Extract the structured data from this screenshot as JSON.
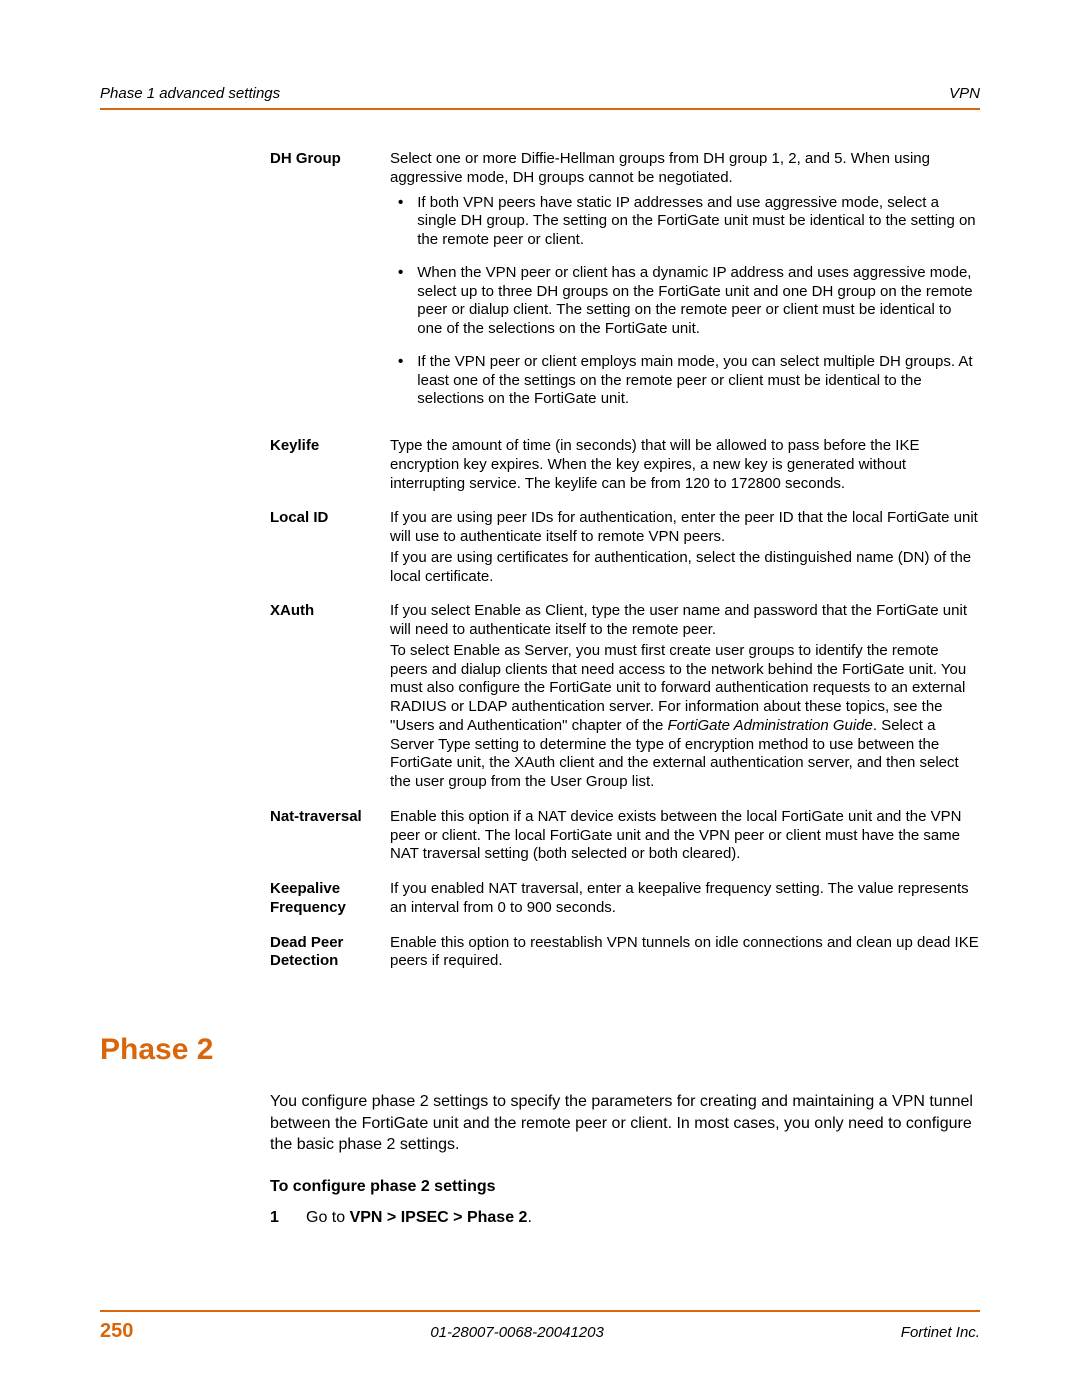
{
  "header": {
    "left": "Phase 1 advanced settings",
    "right": "VPN"
  },
  "defs": {
    "dhgroup": {
      "label": "DH Group",
      "intro": "Select one or more Diffie-Hellman groups from DH group 1, 2, and 5. When using aggressive mode, DH groups cannot be negotiated.",
      "b1": "If both VPN peers have static IP addresses and use aggressive mode, select a single DH group. The setting on the FortiGate unit must be identical to the setting on the remote peer or client.",
      "b2": "When the VPN peer or client has a dynamic IP address and uses aggressive mode, select up to three DH groups on the FortiGate unit and one DH group on the remote peer or dialup client. The setting on the remote peer or client must be identical to one of the selections on the FortiGate unit.",
      "b3": "If the VPN peer or client employs main mode, you can select multiple DH groups. At least one of the settings on the remote peer or client must be identical to the selections on the FortiGate unit."
    },
    "keylife": {
      "label": "Keylife",
      "text": "Type the amount of time (in seconds) that will be allowed to pass before the IKE encryption key expires. When the key expires, a new key is generated without interrupting service. The keylife can be from 120 to 172800 seconds."
    },
    "localid": {
      "label": "Local ID",
      "p1": "If you are using peer IDs for authentication, enter the peer ID that the local FortiGate unit will use to authenticate itself to remote VPN peers.",
      "p2": "If you are using certificates for authentication, select the distinguished name (DN) of the local certificate."
    },
    "xauth": {
      "label": "XAuth",
      "p1": "If you select Enable as Client, type the user name and password that the FortiGate unit will need to authenticate itself to the remote peer.",
      "p2a": "To select Enable as Server, you must first create user groups to identify the remote peers and dialup clients that need access to the network behind the FortiGate unit. You must also configure the FortiGate unit to forward authentication requests to an external RADIUS or LDAP authentication server. For information about these topics, see the \"Users and Authentication\" chapter of the ",
      "p2i": "FortiGate Administration Guide",
      "p2b": ". Select a Server Type setting to determine the type of encryption method to use between the FortiGate unit, the XAuth client and the external authentication server, and then select the user group from the User Group list."
    },
    "nat": {
      "label": "Nat-traversal",
      "text": "Enable this option if a NAT device exists between the local FortiGate unit and the VPN peer or client. The local FortiGate unit and the VPN peer or client must have the same NAT traversal setting (both selected or both cleared)."
    },
    "keepalive": {
      "label": "Keepalive Frequency",
      "text": "If you enabled NAT traversal, enter a keepalive frequency setting. The value represents an interval from 0 to 900 seconds."
    },
    "dpd": {
      "label": "Dead Peer Detection",
      "text": "Enable this option to reestablish VPN tunnels on idle connections and clean up dead IKE peers if required."
    }
  },
  "phase2": {
    "heading": "Phase 2",
    "intro": "You configure phase 2 settings to specify the parameters for creating and maintaining a VPN tunnel between the FortiGate unit and the remote peer or client. In most cases, you only need to configure the basic phase 2 settings.",
    "subheading": "To configure phase 2 settings",
    "step_num": "1",
    "step_a": "Go to ",
    "step_b": "VPN > IPSEC > Phase 2",
    "step_c": "."
  },
  "footer": {
    "page": "250",
    "docid": "01-28007-0068-20041203",
    "company": "Fortinet Inc."
  }
}
